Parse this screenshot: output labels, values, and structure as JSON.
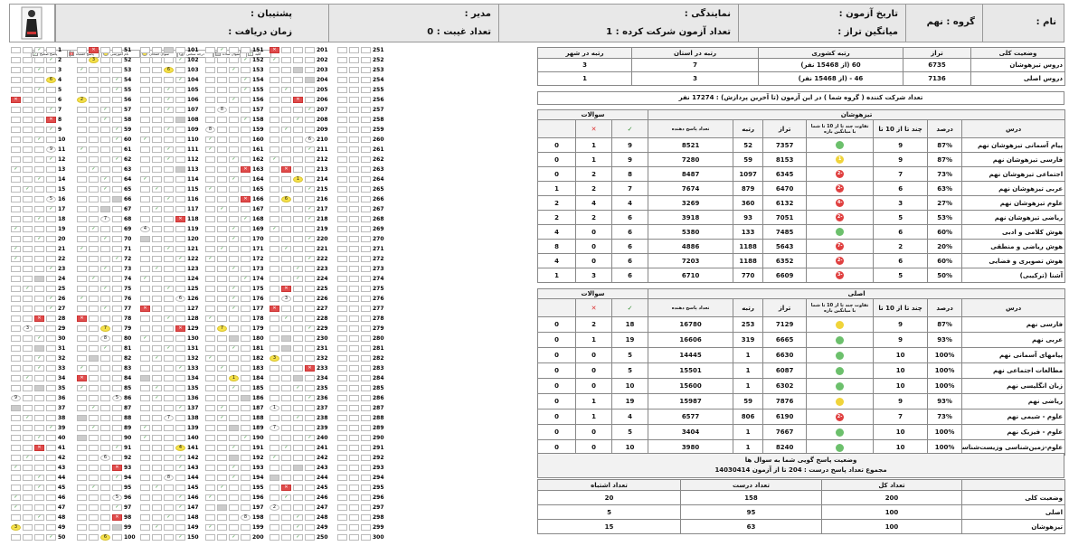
{
  "header": {
    "name_label": "نام :",
    "group": "گروه : نهم",
    "exam_date_label": "تاریخ آزمون :",
    "average_taraz_label": "میانگین تراز :",
    "representative_label": "نمایندگی :",
    "participation_count": "تعداد آزمون شرکت کرده : 1",
    "manager_label": "مدیر :",
    "absence_count": "تعداد غیبت : 0",
    "support_label": "پشتیبان :",
    "receive_time_label": "زمان دریافت :"
  },
  "legend": [
    {
      "label": "پاسخ صحیح",
      "mark": "✓",
      "kind": "c"
    },
    {
      "label": "پاسخ اشتباه",
      "mark": "✕",
      "kind": "w"
    },
    {
      "label": "نام آموزشی",
      "mark": "",
      "kind": "y"
    },
    {
      "label": "سوال امتحان",
      "mark": "",
      "kind": "y"
    },
    {
      "label": "درجه سختی",
      "mark": "5",
      "kind": "d"
    },
    {
      "label": "سوال ساده",
      "mark": "",
      "kind": "h"
    },
    {
      "label": "کلید",
      "mark": "✓",
      "kind": "c"
    }
  ],
  "answer_grid": {
    "first_question": 1,
    "last_question": 300
  },
  "overall": {
    "headers": [
      "وضعیت کلی",
      "تراز",
      "رتبه کشوری",
      "رتبه در استان",
      "رتبه در شهر"
    ],
    "rows": [
      {
        "label": "دروس تیزهوشان",
        "taraz": "6735",
        "national": "60 (از 15468 نفر)",
        "province": "7",
        "city": "3"
      },
      {
        "label": "دروس اصلی",
        "taraz": "7136",
        "national": "46 - (از 15468 نفر)",
        "province": "3",
        "city": "1"
      }
    ]
  },
  "participants": "تعداد شرکت کننده ( گروه شما ) در این آزمون (تا آخرین پردازش) : 17274 نفر",
  "gifted": {
    "title": "تیزهوشان",
    "questions_label": "سوالات",
    "headers": [
      "درس",
      "درصد",
      "چند تا از 10 تا",
      "تفاوت چند تا از 10 تا شما با میانگین بازه",
      "تراز",
      "رتبه",
      "تعداد پاسخ دهنده",
      "✓",
      "✕",
      ""
    ],
    "rows": [
      {
        "name": "پیام آسمانی تیزهوشان نهم",
        "pct": "87%",
        "ten": "9",
        "dot": "g",
        "diff": "",
        "taraz": "7357",
        "rank": "52",
        "resp": "8521",
        "c": "9",
        "w": "1",
        "b": "0"
      },
      {
        "name": "فارسی تیزهوشان نهم",
        "pct": "87%",
        "ten": "9",
        "dot": "y",
        "diff": "1",
        "taraz": "8153",
        "rank": "59",
        "resp": "7280",
        "c": "9",
        "w": "1",
        "b": "0"
      },
      {
        "name": "اجتماعی تیزهوشان نهم",
        "pct": "73%",
        "ten": "7",
        "dot": "r",
        "diff": "-2",
        "taraz": "6345",
        "rank": "1097",
        "resp": "8487",
        "c": "8",
        "w": "2",
        "b": "0"
      },
      {
        "name": "عربی تیزهوشان نهم",
        "pct": "63%",
        "ten": "6",
        "dot": "r",
        "diff": "-2",
        "taraz": "6470",
        "rank": "879",
        "resp": "7674",
        "c": "7",
        "w": "2",
        "b": "1"
      },
      {
        "name": "علوم تیزهوشان نهم",
        "pct": "27%",
        "ten": "3",
        "dot": "r",
        "diff": "-4",
        "taraz": "6132",
        "rank": "360",
        "resp": "3269",
        "c": "4",
        "w": "4",
        "b": "2"
      },
      {
        "name": "ریاضی تیزهوشان نهم",
        "pct": "53%",
        "ten": "5",
        "dot": "r",
        "diff": "-2",
        "taraz": "7051",
        "rank": "93",
        "resp": "3918",
        "c": "6",
        "w": "2",
        "b": "2"
      },
      {
        "name": "هوش کلامی و ادبی",
        "pct": "60%",
        "ten": "6",
        "dot": "g",
        "diff": "",
        "taraz": "7485",
        "rank": "133",
        "resp": "5380",
        "c": "6",
        "w": "0",
        "b": "4"
      },
      {
        "name": "هوش ریاضی و منطقی",
        "pct": "20%",
        "ten": "2",
        "dot": "r",
        "diff": "-7",
        "taraz": "5643",
        "rank": "1188",
        "resp": "4886",
        "c": "6",
        "w": "0",
        "b": "8"
      },
      {
        "name": "هوش تصویری و فضایی",
        "pct": "60%",
        "ten": "6",
        "dot": "r",
        "diff": "-2",
        "taraz": "6352",
        "rank": "1188",
        "resp": "7203",
        "c": "6",
        "w": "0",
        "b": "4"
      },
      {
        "name": "آشنا (ترکیبی)",
        "pct": "50%",
        "ten": "5",
        "dot": "r",
        "diff": "-3",
        "taraz": "6609",
        "rank": "770",
        "resp": "6710",
        "c": "6",
        "w": "3",
        "b": "1"
      }
    ]
  },
  "main": {
    "title": "اصلی",
    "questions_label": "سوالات",
    "headers": [
      "درس",
      "درصد",
      "چند تا از 10 تا",
      "تفاوت چند تا از 10 تا شما با میانگین بازه",
      "تراز",
      "رتبه",
      "تعداد پاسخ دهنده",
      "✓",
      "✕",
      ""
    ],
    "rows": [
      {
        "name": "فارسی نهم",
        "pct": "87%",
        "ten": "9",
        "dot": "y",
        "diff": "",
        "taraz": "7129",
        "rank": "253",
        "resp": "16780",
        "c": "18",
        "w": "2",
        "b": "0"
      },
      {
        "name": "عربی نهم",
        "pct": "93%",
        "ten": "9",
        "dot": "g",
        "diff": "",
        "taraz": "6665",
        "rank": "319",
        "resp": "16606",
        "c": "19",
        "w": "1",
        "b": "0"
      },
      {
        "name": "پیامهای آسمانی نهم",
        "pct": "100%",
        "ten": "10",
        "dot": "g",
        "diff": "",
        "taraz": "6630",
        "rank": "1",
        "resp": "14445",
        "c": "5",
        "w": "0",
        "b": "0"
      },
      {
        "name": "مطالعات اجتماعی نهم",
        "pct": "100%",
        "ten": "10",
        "dot": "g",
        "diff": "",
        "taraz": "6087",
        "rank": "1",
        "resp": "15501",
        "c": "5",
        "w": "0",
        "b": "0"
      },
      {
        "name": "زبان انگلیسی نهم",
        "pct": "100%",
        "ten": "10",
        "dot": "g",
        "diff": "",
        "taraz": "6302",
        "rank": "1",
        "resp": "15600",
        "c": "10",
        "w": "0",
        "b": "0"
      },
      {
        "name": "ریاضی نهم",
        "pct": "93%",
        "ten": "9",
        "dot": "y",
        "diff": "",
        "taraz": "7876",
        "rank": "59",
        "resp": "15987",
        "c": "19",
        "w": "1",
        "b": "0"
      },
      {
        "name": "علوم - شیمی نهم",
        "pct": "73%",
        "ten": "7",
        "dot": "r",
        "diff": "-2",
        "taraz": "6190",
        "rank": "806",
        "resp": "6577",
        "c": "4",
        "w": "1",
        "b": "0"
      },
      {
        "name": "علوم - فیزیک نهم",
        "pct": "100%",
        "ten": "10",
        "dot": "g",
        "diff": "",
        "taraz": "7667",
        "rank": "1",
        "resp": "3404",
        "c": "5",
        "w": "0",
        "b": "0"
      },
      {
        "name": "علوم-زمین‌شناسی وزیست‌شناسی نهم",
        "pct": "100%",
        "ten": "10",
        "dot": "g",
        "diff": "",
        "taraz": "8240",
        "rank": "1",
        "resp": "3980",
        "c": "10",
        "w": "0",
        "b": "0"
      }
    ]
  },
  "status": {
    "title": "وضعیت پاسخ گویی شما به سوال ها",
    "subtitle": "مجموع تعداد پاسخ درست : 204 تا از آزمون 14030414",
    "headers": [
      "",
      "تعداد کل",
      "تعداد درست",
      "تعداد اشتباه"
    ],
    "rows": [
      {
        "label": "وضعیت کلی",
        "total": "200",
        "correct": "158",
        "wrong": "20"
      },
      {
        "label": "اصلی",
        "total": "100",
        "correct": "95",
        "wrong": "5"
      },
      {
        "label": "تیزهوشان",
        "total": "100",
        "correct": "63",
        "wrong": "15"
      }
    ]
  }
}
